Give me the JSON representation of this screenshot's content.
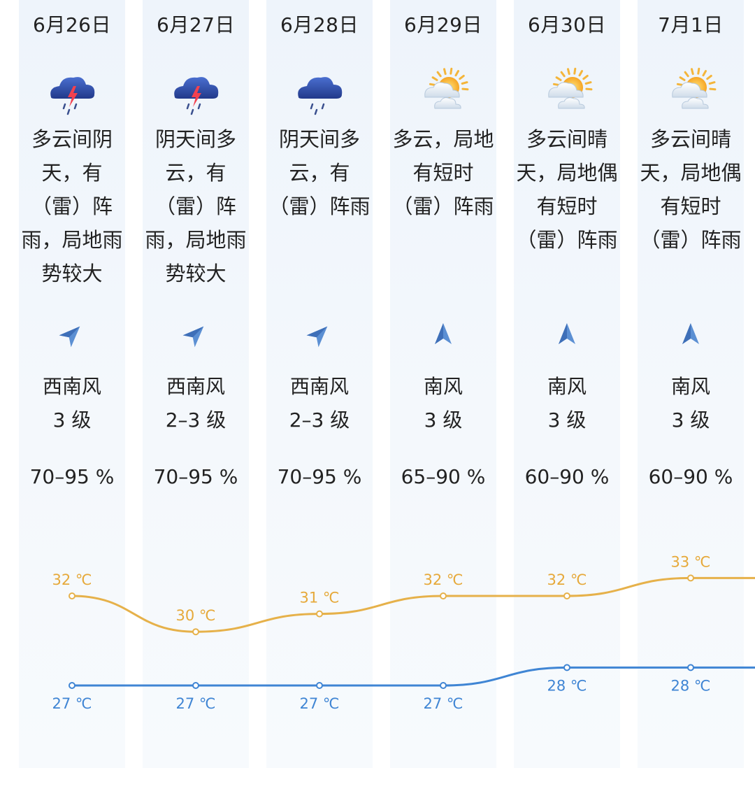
{
  "days": [
    {
      "date": "6月26日",
      "icon": "thunderstorm-icon",
      "desc_lines": [
        "多云间阴",
        "天，有",
        "（雷）阵",
        "雨，局地雨",
        "势较大"
      ],
      "wind_dir_name": "wind-direction-southwest-icon",
      "wind": "西南风",
      "wind_level": "3 级",
      "humidity": "70–95 %",
      "high": "32 ℃",
      "low": "27 ℃"
    },
    {
      "date": "6月27日",
      "icon": "thunderstorm-icon",
      "desc_lines": [
        "阴天间多",
        "云，有",
        "（雷）阵",
        "雨，局地雨",
        "势较大"
      ],
      "wind_dir_name": "wind-direction-southwest-icon",
      "wind": "西南风",
      "wind_level": "2–3 级",
      "humidity": "70–95 %",
      "high": "30 ℃",
      "low": "27 ℃"
    },
    {
      "date": "6月28日",
      "icon": "rain-icon",
      "desc_lines": [
        "阴天间多",
        "云，有",
        "（雷）阵雨"
      ],
      "wind_dir_name": "wind-direction-southwest-icon",
      "wind": "西南风",
      "wind_level": "2–3 级",
      "humidity": "70–95 %",
      "high": "31 ℃",
      "low": "27 ℃"
    },
    {
      "date": "6月29日",
      "icon": "partly-cloudy-icon",
      "desc_lines": [
        "多云，局地",
        "有短时",
        "（雷）阵雨"
      ],
      "wind_dir_name": "wind-direction-south-icon",
      "wind": "南风",
      "wind_level": "3 级",
      "humidity": "65–90 %",
      "high": "32 ℃",
      "low": "27 ℃"
    },
    {
      "date": "6月30日",
      "icon": "partly-cloudy-icon",
      "desc_lines": [
        "多云间晴",
        "天，局地偶",
        "有短时",
        "（雷）阵雨"
      ],
      "wind_dir_name": "wind-direction-south-icon",
      "wind": "南风",
      "wind_level": "3 级",
      "humidity": "60–90 %",
      "high": "32 ℃",
      "low": "28 ℃"
    },
    {
      "date": "7月1日",
      "icon": "partly-cloudy-icon",
      "desc_lines": [
        "多云间晴",
        "天，局地偶",
        "有短时",
        "（雷）阵雨"
      ],
      "wind_dir_name": "wind-direction-south-icon",
      "wind": "南风",
      "wind_level": "3 级",
      "humidity": "60–90 %",
      "high": "33 ℃",
      "low": "28 ℃"
    }
  ],
  "chart_data": {
    "type": "line",
    "categories": [
      "6月26日",
      "6月27日",
      "6月28日",
      "6月29日",
      "6月30日",
      "7月1日"
    ],
    "series": [
      {
        "values": [
          32,
          30,
          31,
          32,
          32,
          33
        ]
      },
      {
        "values": [
          27,
          27,
          27,
          27,
          28,
          28
        ]
      }
    ],
    "colors": {
      "high": "#e6a93a",
      "low": "#3f85d4"
    }
  }
}
